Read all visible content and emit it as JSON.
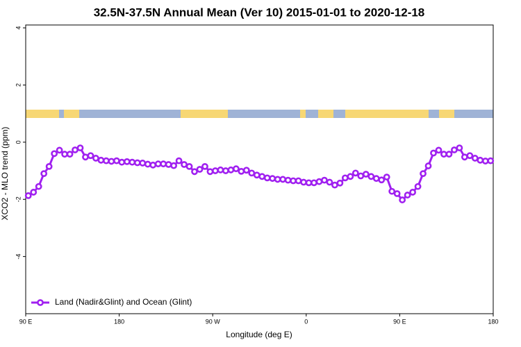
{
  "chart_data": {
    "type": "line",
    "title": "32.5N-37.5N Annual Mean (Ver 10)   2015-01-01 to 2020-12-18",
    "x_label": "Longitude (deg E)",
    "y_label": "XCO2 - MLO trend (ppm)",
    "x": [
      -267.5,
      -262.5,
      -257.5,
      -252.5,
      -247.5,
      -242.5,
      -237.5,
      -232.5,
      -227.5,
      -222.5,
      -217.5,
      -212.5,
      -207.5,
      -202.5,
      -197.5,
      -192.5,
      -187.5,
      -182.5,
      -177.5,
      -172.5,
      -167.5,
      -162.5,
      -157.5,
      -152.5,
      -147.5,
      -142.5,
      -137.5,
      -132.5,
      -127.5,
      -122.5,
      -117.5,
      -112.5,
      -107.5,
      -102.5,
      -97.5,
      -92.5,
      -87.5,
      -82.5,
      -77.5,
      -72.5,
      -67.5,
      -62.5,
      -57.5,
      -52.5,
      -47.5,
      -42.5,
      -37.5,
      -32.5,
      -27.5,
      -22.5,
      -17.5,
      -12.5,
      -7.5,
      -2.5,
      2.5,
      7.5,
      12.5,
      17.5,
      22.5,
      27.5,
      32.5,
      37.5,
      42.5,
      47.5,
      52.5,
      57.5,
      62.5,
      67.5,
      72.5,
      77.5,
      82.5,
      87.5,
      92.5,
      97.5,
      102.5,
      107.5,
      112.5,
      117.5,
      122.5,
      127.5,
      132.5,
      137.5,
      142.5,
      147.5,
      152.5,
      157.5,
      162.5,
      167.5,
      172.5,
      177.5
    ],
    "series": [
      {
        "name": "Land (Nadir&Glint) and Ocean (Glint)",
        "color": "#a020f0",
        "values": [
          -1.87,
          -1.75,
          -1.55,
          -1.1,
          -0.85,
          -0.4,
          -0.28,
          -0.42,
          -0.42,
          -0.27,
          -0.2,
          -0.52,
          -0.47,
          -0.56,
          -0.63,
          -0.65,
          -0.67,
          -0.65,
          -0.7,
          -0.68,
          -0.7,
          -0.72,
          -0.73,
          -0.77,
          -0.8,
          -0.76,
          -0.76,
          -0.78,
          -0.82,
          -0.65,
          -0.78,
          -0.85,
          -1.03,
          -0.95,
          -0.85,
          -1.03,
          -1.0,
          -0.97,
          -1.0,
          -0.97,
          -0.93,
          -1.02,
          -0.98,
          -1.08,
          -1.15,
          -1.2,
          -1.25,
          -1.27,
          -1.3,
          -1.3,
          -1.33,
          -1.35,
          -1.35,
          -1.4,
          -1.42,
          -1.42,
          -1.38,
          -1.33,
          -1.4,
          -1.5,
          -1.43,
          -1.25,
          -1.2,
          -1.08,
          -1.18,
          -1.12,
          -1.2,
          -1.27,
          -1.32,
          -1.22,
          -1.72,
          -1.8,
          -2.02,
          -1.85,
          -1.75,
          -1.55,
          -1.1,
          -0.83,
          -0.38,
          -0.28,
          -0.42,
          -0.42,
          -0.27,
          -0.2,
          -0.52,
          -0.47,
          -0.56,
          -0.63,
          -0.66,
          -0.65
        ]
      }
    ],
    "xlim": [
      -270,
      180
    ],
    "xticks": [
      {
        "value": -270,
        "label": "90 E"
      },
      {
        "value": -180,
        "label": "180"
      },
      {
        "value": -90,
        "label": "90 W"
      },
      0,
      {
        "value": 90,
        "label": "90 E"
      },
      180
    ],
    "ylim": [
      -6,
      4.1
    ],
    "yticks": [
      -4,
      -2,
      0,
      2,
      4
    ],
    "legend": "bottom-left"
  }
}
